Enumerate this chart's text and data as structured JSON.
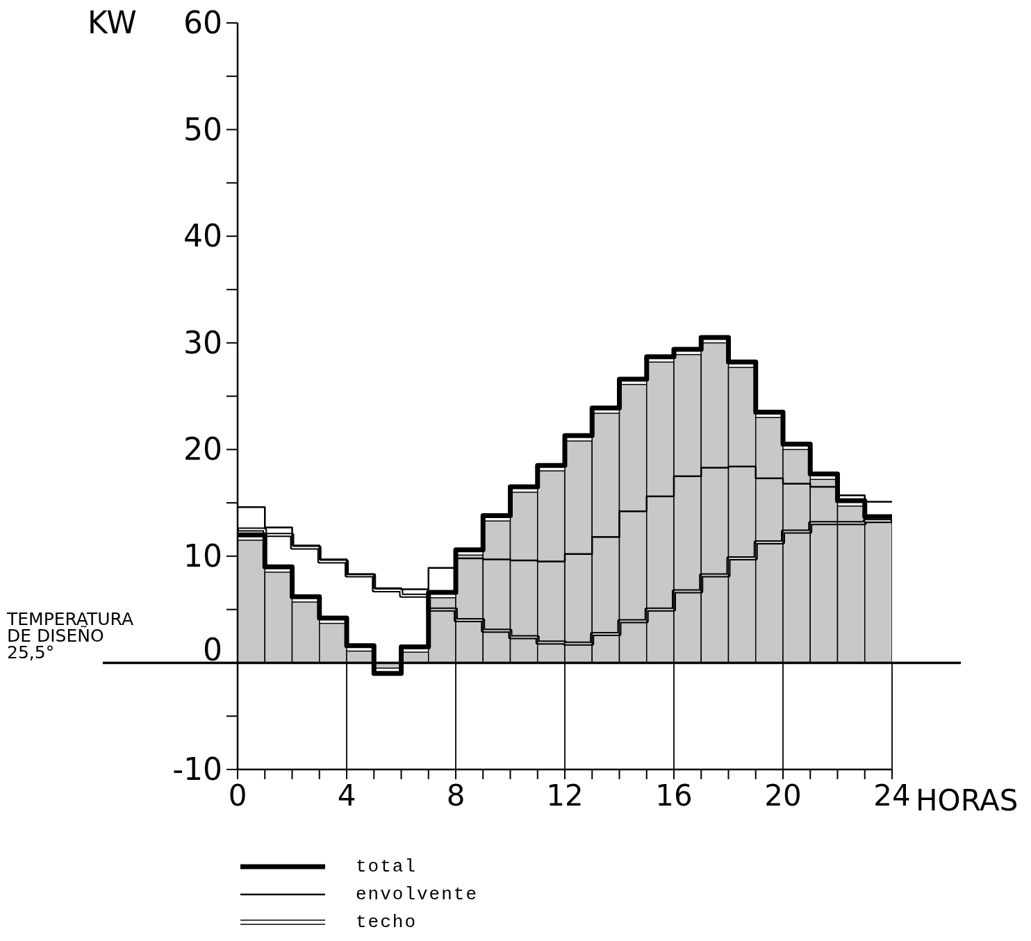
{
  "chart_data": {
    "type": "step",
    "ylabel": "KW",
    "xlabel": "HORAS",
    "series": [
      {
        "type": "histogram",
        "color": "#c8c8c8",
        "bins": [
          0,
          1,
          2,
          3,
          4,
          5,
          6,
          7,
          8,
          9,
          10,
          11,
          12,
          13,
          14,
          15,
          16,
          17,
          18,
          19,
          20,
          21,
          22,
          23,
          24
        ],
        "values": [
          11.5,
          8.5,
          5.7,
          3.7,
          1.1,
          -0.5,
          1,
          6.1,
          10.1,
          13.3,
          16,
          18,
          20.8,
          23.4,
          26.1,
          28.2,
          28.9,
          30,
          27.7,
          23,
          20,
          17.2,
          14.7,
          13.2
        ]
      },
      {
        "name": "total",
        "color": "#000000",
        "x": [
          0,
          1,
          2,
          3,
          4,
          5,
          6,
          7,
          8,
          9,
          10,
          11,
          12,
          13,
          14,
          15,
          16,
          17,
          18,
          19,
          20,
          21,
          22,
          23,
          24
        ],
        "values": [
          12,
          9,
          6.2,
          4.2,
          1.6,
          -1,
          1.5,
          6.6,
          10.6,
          13.8,
          16.5,
          18.5,
          21.3,
          23.9,
          26.6,
          28.7,
          29.4,
          30.5,
          28.2,
          23.5,
          20.5,
          17.7,
          15.2,
          13.7,
          13.7
        ]
      },
      {
        "name": "envolvente",
        "color": "#000000",
        "x": [
          0,
          1,
          2,
          3,
          4,
          5,
          6,
          7,
          8,
          9,
          10,
          11,
          12,
          13,
          14,
          15,
          16,
          17,
          18,
          19,
          20,
          21,
          22,
          23,
          24
        ],
        "values": [
          14.6,
          12.7,
          11,
          9.7,
          8.3,
          7,
          6.9,
          8.9,
          9.8,
          9.7,
          9.6,
          9.5,
          10.2,
          11.8,
          14.2,
          15.6,
          17.5,
          18.3,
          18.4,
          17.3,
          16.8,
          16.5,
          15.7,
          15.1,
          15.1
        ]
      },
      {
        "name": "techo",
        "color": "#000000",
        "x": [
          0,
          1,
          2,
          3,
          4,
          5,
          6,
          7,
          8,
          9,
          10,
          11,
          12,
          13,
          14,
          15,
          16,
          17,
          18,
          19,
          20,
          21,
          22,
          23,
          24
        ],
        "values": [
          12.5,
          12,
          10.8,
          9.5,
          8.2,
          6.8,
          6.3,
          5,
          4,
          3,
          2.4,
          1.9,
          1.8,
          2.7,
          3.9,
          5,
          6.7,
          8.2,
          9.8,
          11.3,
          12.3,
          13.1,
          13.1,
          13.3,
          13.3
        ]
      }
    ],
    "xlim": [
      0,
      24
    ],
    "xticks": [
      0,
      {
        "value": 1,
        "label": null
      },
      {
        "value": 2,
        "label": null
      },
      {
        "value": 3,
        "label": null
      },
      4,
      {
        "value": 5,
        "label": null
      },
      {
        "value": 6,
        "label": null
      },
      {
        "value": 7,
        "label": null
      },
      8,
      {
        "value": 9,
        "label": null
      },
      {
        "value": 10,
        "label": null
      },
      {
        "value": 11,
        "label": null
      },
      12,
      {
        "value": 13,
        "label": null
      },
      {
        "value": 14,
        "label": null
      },
      {
        "value": 15,
        "label": null
      },
      16,
      {
        "value": 17,
        "label": null
      },
      {
        "value": 18,
        "label": null
      },
      {
        "value": 19,
        "label": null
      },
      20,
      {
        "value": 21,
        "label": null
      },
      {
        "value": 22,
        "label": null
      },
      {
        "value": 23,
        "label": null
      },
      24
    ],
    "ylim": [
      -10,
      60
    ],
    "yticks": [
      -10,
      {
        "value": -5,
        "label": null
      },
      0,
      {
        "value": 5,
        "label": null
      },
      10,
      {
        "value": 15,
        "label": null
      },
      20,
      {
        "value": 25,
        "label": null
      },
      30,
      {
        "value": 35,
        "label": null
      },
      40,
      {
        "value": 45,
        "label": null
      },
      50,
      {
        "value": 55,
        "label": null
      },
      60
    ],
    "ref_lines": [
      {
        "axis": "y",
        "value": 0,
        "label": "TEMPERATURA\nDE DISEÑO\n25,5°",
        "color": "#000000"
      }
    ],
    "legend": "bottom"
  }
}
